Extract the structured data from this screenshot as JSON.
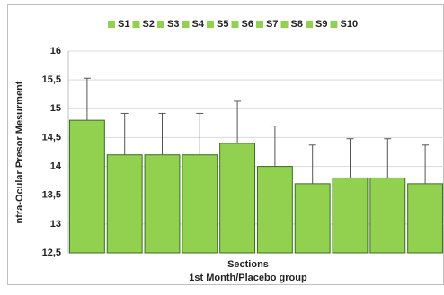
{
  "chart_data": {
    "type": "bar",
    "y_label": "ntra-Ocular Presor Mesurment",
    "x_label": "Sections",
    "x_sublabel": "1st Month/Placebo group",
    "ylim": [
      12.5,
      16
    ],
    "yticks": [
      {
        "value": 12.5,
        "label": "12,5"
      },
      13,
      {
        "value": 13.5,
        "label": "13,5"
      },
      14,
      {
        "value": 14.5,
        "label": "14,5"
      },
      15,
      {
        "value": 15.5,
        "label": "15,5"
      },
      16
    ],
    "grid": true,
    "legend": "top",
    "series": [
      {
        "name": "S1",
        "color": "#92d050",
        "values": [
          14.8
        ],
        "errors": [
          0.73
        ]
      },
      {
        "name": "S2",
        "color": "#92d050",
        "values": [
          14.2
        ],
        "errors": [
          0.72
        ]
      },
      {
        "name": "S3",
        "color": "#92d050",
        "values": [
          14.2
        ],
        "errors": [
          0.72
        ]
      },
      {
        "name": "S4",
        "color": "#92d050",
        "values": [
          14.2
        ],
        "errors": [
          0.72
        ]
      },
      {
        "name": "S5",
        "color": "#92d050",
        "values": [
          14.4
        ],
        "errors": [
          0.73
        ]
      },
      {
        "name": "S6",
        "color": "#92d050",
        "values": [
          14.0
        ],
        "errors": [
          0.7
        ]
      },
      {
        "name": "S7",
        "color": "#92d050",
        "values": [
          13.7
        ],
        "errors": [
          0.67
        ]
      },
      {
        "name": "S8",
        "color": "#92d050",
        "values": [
          13.8
        ],
        "errors": [
          0.68
        ]
      },
      {
        "name": "S9",
        "color": "#92d050",
        "values": [
          13.8
        ],
        "errors": [
          0.68
        ]
      },
      {
        "name": "S10",
        "color": "#92d050",
        "values": [
          13.7
        ],
        "errors": [
          0.67
        ]
      }
    ]
  }
}
